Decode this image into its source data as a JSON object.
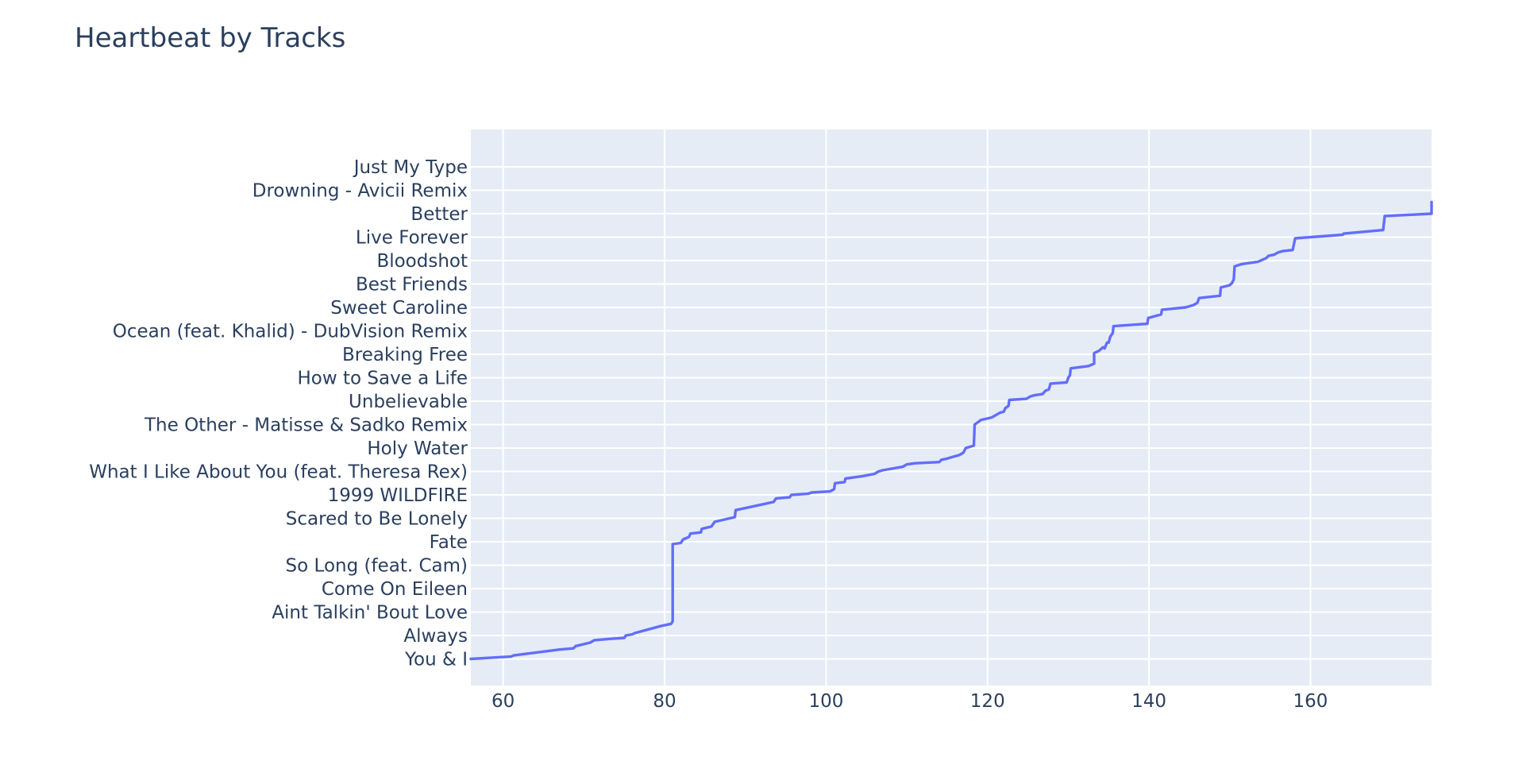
{
  "chart_data": {
    "type": "line",
    "title": "Heartbeat by Tracks",
    "xlabel": "",
    "ylabel": "",
    "xlim": [
      56,
      175
    ],
    "x_ticks": [
      60,
      80,
      100,
      120,
      140,
      160
    ],
    "grid": true,
    "legend": "none",
    "line_color": "#636efa",
    "plot_bg": "#e5ecf6",
    "y_tick_labels": [
      "You & I",
      "Always",
      "Aint Talkin' Bout Love",
      "Come On Eileen",
      "So Long (feat. Cam)",
      "Fate",
      "Scared to Be Lonely",
      "1999 WILDFIRE",
      "What I Like About You (feat. Theresa Rex)",
      "Holy Water",
      "The Other - Matisse & Sadko Remix",
      "Unbelievable",
      "How to Save a Life",
      "Breaking Free",
      "Ocean (feat. Khalid) - DubVision Remix",
      "Sweet Caroline",
      "Best Friends",
      "Bloodshot",
      "Live Forever",
      "Better",
      "Drowning - Avicii Remix",
      "Just My Type"
    ],
    "series": [
      {
        "points": [
          [
            56,
            0.0
          ],
          [
            61,
            0.1
          ],
          [
            61.3,
            0.15
          ],
          [
            67,
            0.4
          ],
          [
            68.7,
            0.45
          ],
          [
            69,
            0.55
          ],
          [
            70.8,
            0.7
          ],
          [
            71.3,
            0.8
          ],
          [
            73,
            0.85
          ],
          [
            75,
            0.9
          ],
          [
            75.2,
            1.0
          ],
          [
            76,
            1.05
          ],
          [
            76.3,
            1.1
          ],
          [
            79.5,
            1.4
          ],
          [
            80.8,
            1.5
          ],
          [
            81,
            1.6
          ],
          [
            81,
            4.9
          ],
          [
            82,
            4.95
          ],
          [
            82.3,
            5.1
          ],
          [
            83,
            5.2
          ],
          [
            83.2,
            5.35
          ],
          [
            84.5,
            5.4
          ],
          [
            84.6,
            5.55
          ],
          [
            85.8,
            5.65
          ],
          [
            86.2,
            5.85
          ],
          [
            88.7,
            6.05
          ],
          [
            88.8,
            6.35
          ],
          [
            91.5,
            6.55
          ],
          [
            93.5,
            6.7
          ],
          [
            93.8,
            6.85
          ],
          [
            95.5,
            6.9
          ],
          [
            95.7,
            7.0
          ],
          [
            97.8,
            7.05
          ],
          [
            98.2,
            7.1
          ],
          [
            100.5,
            7.15
          ],
          [
            101,
            7.25
          ],
          [
            101.1,
            7.5
          ],
          [
            102.3,
            7.55
          ],
          [
            102.4,
            7.7
          ],
          [
            104.5,
            7.8
          ],
          [
            106,
            7.9
          ],
          [
            106.5,
            8.0
          ],
          [
            107,
            8.05
          ],
          [
            109.5,
            8.2
          ],
          [
            110,
            8.3
          ],
          [
            111,
            8.35
          ],
          [
            114,
            8.4
          ],
          [
            114.3,
            8.5
          ],
          [
            115,
            8.55
          ],
          [
            116,
            8.65
          ],
          [
            116.5,
            8.7
          ],
          [
            117,
            8.8
          ],
          [
            117.3,
            9.0
          ],
          [
            118.3,
            9.1
          ],
          [
            118.4,
            10.0
          ],
          [
            119.2,
            10.2
          ],
          [
            120.5,
            10.3
          ],
          [
            121.5,
            10.5
          ],
          [
            122,
            10.55
          ],
          [
            122.2,
            10.7
          ],
          [
            122.6,
            10.8
          ],
          [
            122.7,
            11.05
          ],
          [
            124.8,
            11.1
          ],
          [
            125.3,
            11.2
          ],
          [
            125.8,
            11.25
          ],
          [
            126.8,
            11.3
          ],
          [
            127.2,
            11.45
          ],
          [
            127.6,
            11.5
          ],
          [
            127.8,
            11.75
          ],
          [
            129.8,
            11.8
          ],
          [
            130,
            12.0
          ],
          [
            130.2,
            12.1
          ],
          [
            130.3,
            12.4
          ],
          [
            132.5,
            12.5
          ],
          [
            133.2,
            12.6
          ],
          [
            133.2,
            13.05
          ],
          [
            133.8,
            13.15
          ],
          [
            134.3,
            13.3
          ],
          [
            134.5,
            13.25
          ],
          [
            134.8,
            13.5
          ],
          [
            135,
            13.5
          ],
          [
            135.2,
            13.75
          ],
          [
            135.5,
            13.9
          ],
          [
            135.6,
            14.2
          ],
          [
            139.8,
            14.3
          ],
          [
            139.9,
            14.55
          ],
          [
            141.5,
            14.7
          ],
          [
            141.6,
            14.9
          ],
          [
            144.5,
            15.0
          ],
          [
            145.5,
            15.1
          ],
          [
            146,
            15.2
          ],
          [
            146.2,
            15.4
          ],
          [
            148.8,
            15.5
          ],
          [
            148.9,
            15.85
          ],
          [
            150,
            15.95
          ],
          [
            150.3,
            16.05
          ],
          [
            150.5,
            16.2
          ],
          [
            150.6,
            16.75
          ],
          [
            151.5,
            16.85
          ],
          [
            153.5,
            16.95
          ],
          [
            154.5,
            17.1
          ],
          [
            154.8,
            17.2
          ],
          [
            155.5,
            17.25
          ],
          [
            156,
            17.35
          ],
          [
            156.5,
            17.4
          ],
          [
            157.8,
            17.45
          ],
          [
            158.1,
            17.95
          ],
          [
            164,
            18.1
          ],
          [
            164.1,
            18.15
          ],
          [
            169,
            18.3
          ],
          [
            169.2,
            18.9
          ],
          [
            175,
            19.0
          ],
          [
            175,
            19.5
          ]
        ]
      }
    ]
  }
}
